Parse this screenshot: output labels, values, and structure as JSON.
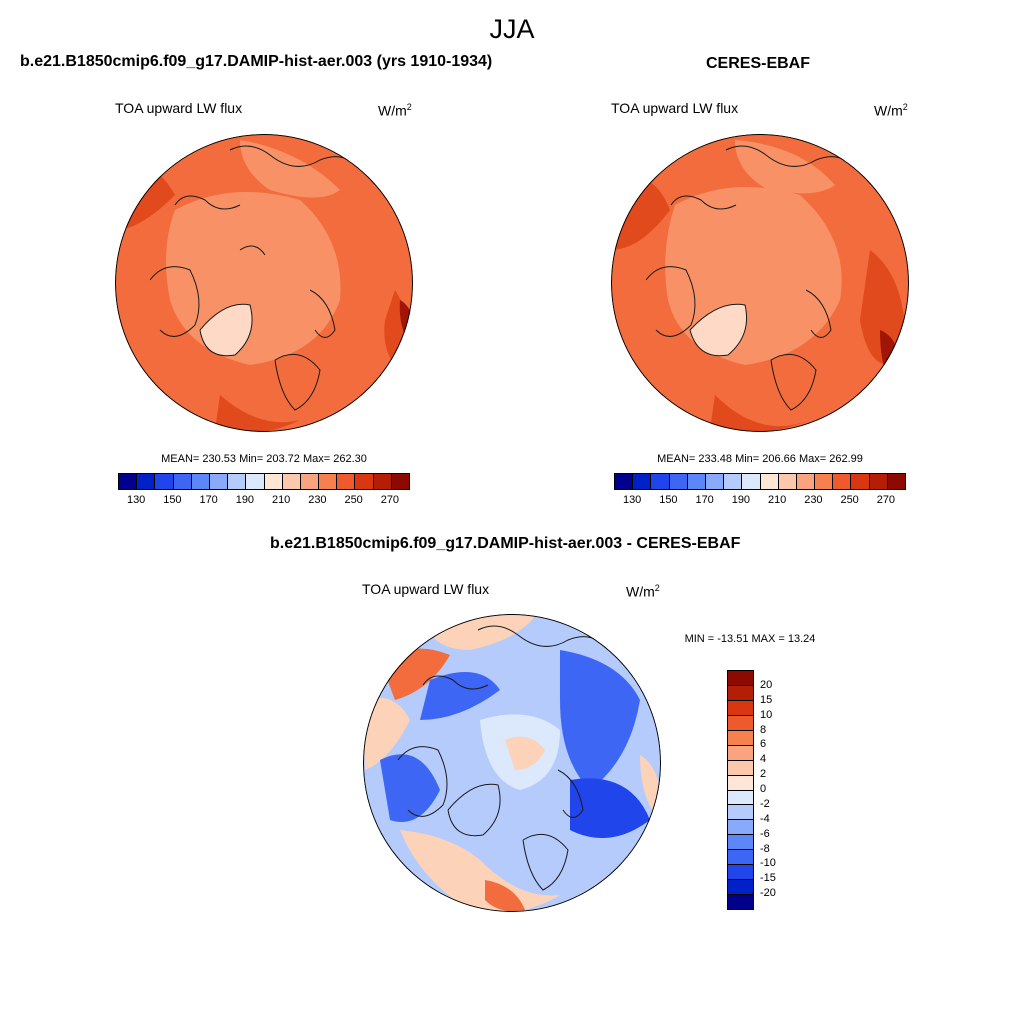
{
  "figure": {
    "season_title": "JJA"
  },
  "panels": [
    {
      "title": "b.e21.B1850cmip6.f09_g17.DAMIP-hist-aer.003 (yrs 1910-1934)",
      "variable": "TOA upward LW flux",
      "units": "W/m",
      "units_exp": "2",
      "stats": "MEAN= 230.53  Min= 203.72  Max= 262.30"
    },
    {
      "title": "CERES-EBAF",
      "variable": "TOA upward LW flux",
      "units": "W/m",
      "units_exp": "2",
      "stats": "MEAN= 233.48  Min= 206.66  Max= 262.99"
    },
    {
      "title": "b.e21.B1850cmip6.f09_g17.DAMIP-hist-aer.003 - CERES-EBAF",
      "variable": "TOA upward LW flux",
      "units": "W/m",
      "units_exp": "2",
      "stats": "MIN = -13.51 MAX =  13.24"
    }
  ],
  "colorbar_abs": {
    "tick_labels": [
      "130",
      "150",
      "170",
      "190",
      "210",
      "230",
      "250",
      "270"
    ],
    "colors": [
      "#00008c",
      "#0020c8",
      "#1f45eb",
      "#3d66f5",
      "#5d86f8",
      "#89a9fa",
      "#b4cbfc",
      "#dbe8fe",
      "#fde6d6",
      "#fcc8ad",
      "#f9a37f",
      "#f6814f",
      "#ee5a2c",
      "#d83712",
      "#b51e06",
      "#8c0a00"
    ]
  },
  "colorbar_diff": {
    "tick_labels": [
      "20",
      "15",
      "10",
      "8",
      "6",
      "4",
      "2",
      "0",
      "-2",
      "-4",
      "-6",
      "-8",
      "-10",
      "-15",
      "-20"
    ],
    "colors": [
      "#8c0a00",
      "#b51e06",
      "#d83712",
      "#ee5a2c",
      "#f6814f",
      "#f9a37f",
      "#fcc8ad",
      "#fde6d6",
      "#dbe8fe",
      "#b4cbfc",
      "#89a9fa",
      "#5d86f8",
      "#3d66f5",
      "#1f45eb",
      "#0020c8",
      "#00008c"
    ]
  },
  "map_colors": {
    "abs_warm": "#f26c3d",
    "abs_mid": "#f89266",
    "abs_light": "#fdd9c6",
    "abs_deep": "#e04a1c",
    "abs_dark": "#a11507",
    "diff_neutral": "#dce8fc",
    "diff_blue": "#3d66f5",
    "diff_deepblue": "#1f45eb",
    "diff_pale": "#b4cbfc",
    "diff_lightred": "#fcd2b9",
    "diff_red": "#f26c3d",
    "coast": "#1a1a1a"
  }
}
